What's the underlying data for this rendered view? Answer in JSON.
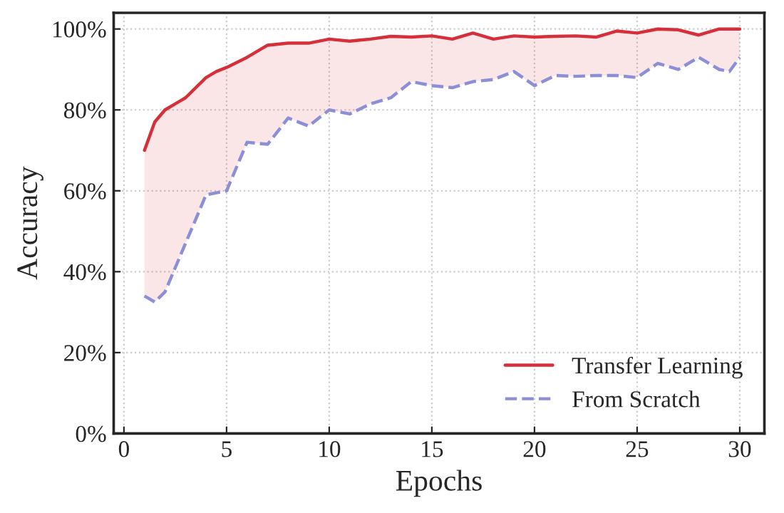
{
  "chart_data": {
    "type": "line",
    "xlabel": "Epochs",
    "ylabel": "Accuracy",
    "x": [
      1,
      1.5,
      2,
      3,
      4,
      4.5,
      5,
      6,
      7,
      8,
      9,
      10,
      11,
      12,
      13,
      14,
      15,
      16,
      17,
      18,
      19,
      20,
      21,
      22,
      23,
      24,
      25,
      26,
      27,
      28,
      29,
      29.5,
      30
    ],
    "series": [
      {
        "name": "Transfer Learning",
        "color": "#d62f3a",
        "line_style": "solid",
        "values": [
          70,
          77,
          80,
          83,
          88,
          89.5,
          90.5,
          93,
          96,
          96.5,
          96.5,
          97.5,
          97,
          97.5,
          98.2,
          98,
          98.3,
          97.5,
          99,
          97.5,
          98.3,
          98,
          98.2,
          98.3,
          98,
          99.5,
          99,
          100,
          99.8,
          98.5,
          100,
          100,
          100
        ],
        "lower": [
          34,
          32.5,
          35,
          47,
          59,
          59.5,
          60,
          72,
          71.5,
          78,
          76,
          80,
          79,
          81.5,
          83,
          87,
          86,
          85.5,
          87,
          87.5,
          89.5,
          86,
          88.5,
          88.3,
          88.5,
          88.5,
          88,
          91.5,
          90,
          93,
          90,
          89.5,
          93
        ],
        "upper": [
          70,
          77,
          80,
          83,
          88,
          89.5,
          90.5,
          93,
          96,
          96.5,
          96.5,
          97.5,
          97,
          97.5,
          98.2,
          98,
          98.3,
          97.5,
          99,
          97.5,
          98.3,
          98,
          98.2,
          98.3,
          98,
          99.5,
          99,
          100,
          99.8,
          98.5,
          100,
          100,
          100
        ]
      },
      {
        "name": "From Scratch",
        "color": "#8d8fd6",
        "line_style": "dashed",
        "values": [
          34,
          32.5,
          35,
          47,
          59,
          59.5,
          60,
          72,
          71.5,
          78,
          76,
          80,
          79,
          81.5,
          83,
          87,
          86,
          85.5,
          87,
          87.5,
          89.5,
          86,
          88.5,
          88.3,
          88.5,
          88.5,
          88,
          91.5,
          90,
          93,
          90,
          89.5,
          93
        ]
      }
    ],
    "xlim": [
      -0.5,
      31.2
    ],
    "xticks": [
      0,
      5,
      10,
      15,
      20,
      25,
      30
    ],
    "ylim": [
      0,
      104
    ],
    "yticks": [
      {
        "value": 0,
        "label": "0%"
      },
      {
        "value": 20,
        "label": "20%"
      },
      {
        "value": 40,
        "label": "40%"
      },
      {
        "value": 60,
        "label": "60%"
      },
      {
        "value": 80,
        "label": "80%"
      },
      {
        "value": 100,
        "label": "100%"
      }
    ],
    "grid": true,
    "legend": "lower right"
  }
}
